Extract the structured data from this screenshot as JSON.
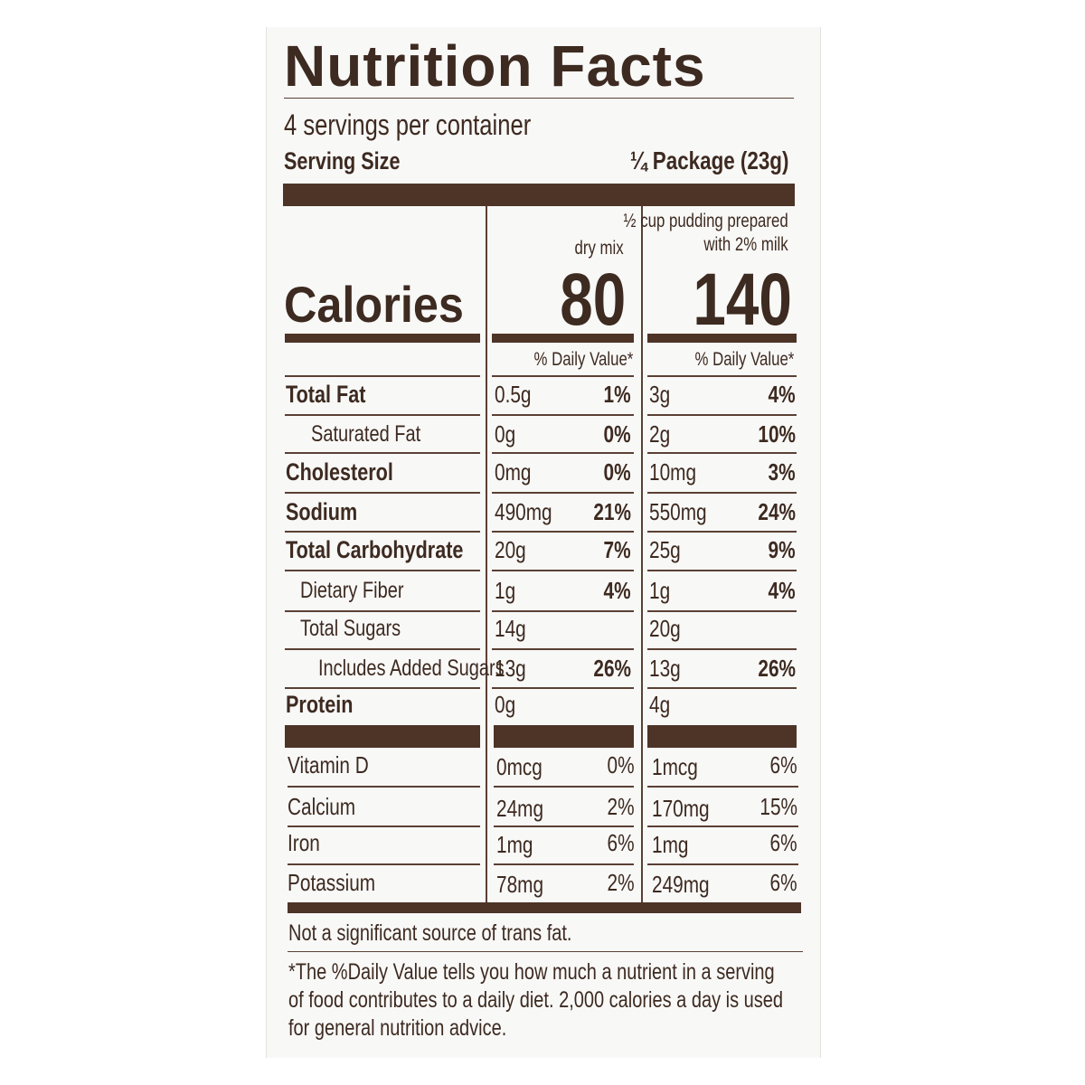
{
  "title": "Nutrition Facts",
  "servings_per_container": "4 servings per container",
  "serving_size_label": "Serving Size",
  "serving_size_value": "¼ Package (23g)",
  "columns": [
    {
      "header": "dry mix",
      "calories": "80",
      "dv_header": "% Daily Value*"
    },
    {
      "header": "½ cup pudding prepared with 2% milk",
      "header_line1": "½ cup pudding prepared",
      "header_line2": "with 2% milk",
      "calories": "140",
      "dv_header": "% Daily Value*"
    }
  ],
  "calories_label": "Calories",
  "nutrients": [
    {
      "name": "Total Fat",
      "bold": true,
      "indent": 0,
      "dry_amount": "0.5g",
      "dry_dv": "1%",
      "prep_amount": "3g",
      "prep_dv": "4%"
    },
    {
      "name": "Saturated Fat",
      "bold": false,
      "indent": 1,
      "dry_amount": "0g",
      "dry_dv": "0%",
      "prep_amount": "2g",
      "prep_dv": "10%"
    },
    {
      "name": "Cholesterol",
      "bold": true,
      "indent": 0,
      "dry_amount": "0mg",
      "dry_dv": "0%",
      "prep_amount": "10mg",
      "prep_dv": "3%"
    },
    {
      "name": "Sodium",
      "bold": true,
      "indent": 0,
      "dry_amount": "490mg",
      "dry_dv": "21%",
      "prep_amount": "550mg",
      "prep_dv": "24%"
    },
    {
      "name": "Total Carbohydrate",
      "bold": true,
      "indent": 0,
      "dry_amount": "20g",
      "dry_dv": "7%",
      "prep_amount": "25g",
      "prep_dv": "9%"
    },
    {
      "name": "Dietary Fiber",
      "bold": false,
      "indent": 1,
      "dry_amount": "1g",
      "dry_dv": "4%",
      "prep_amount": "1g",
      "prep_dv": "4%"
    },
    {
      "name": "Total Sugars",
      "bold": false,
      "indent": 1,
      "dry_amount": "14g",
      "dry_dv": "",
      "prep_amount": "20g",
      "prep_dv": ""
    },
    {
      "name": "Includes Added Sugars",
      "bold": false,
      "indent": 2,
      "dry_amount": "13g",
      "dry_dv": "26%",
      "prep_amount": "13g",
      "prep_dv": "26%"
    },
    {
      "name": "Protein",
      "bold": true,
      "indent": 0,
      "dry_amount": "0g",
      "dry_dv": "",
      "prep_amount": "4g",
      "prep_dv": ""
    }
  ],
  "vitamins": [
    {
      "name": "Vitamin D",
      "dry_amount": "0mcg",
      "dry_dv": "0%",
      "prep_amount": "1mcg",
      "prep_dv": "6%"
    },
    {
      "name": "Calcium",
      "dry_amount": "24mg",
      "dry_dv": "2%",
      "prep_amount": "170mg",
      "prep_dv": "15%"
    },
    {
      "name": "Iron",
      "dry_amount": "1mg",
      "dry_dv": "6%",
      "prep_amount": "1mg",
      "prep_dv": "6%"
    },
    {
      "name": "Potassium",
      "dry_amount": "78mg",
      "dry_dv": "2%",
      "prep_amount": "249mg",
      "prep_dv": "6%"
    }
  ],
  "trans_fat_note": "Not a significant source of trans fat.",
  "footnote_lines": [
    "*The %Daily Value tells you how much a nutrient in a serving",
    "of food contributes to a daily diet. 2,000 calories a day is used",
    "for general nutrition advice."
  ],
  "colors": {
    "ink": "#3d2a20",
    "bar": "#4d3427",
    "panel": "#f8f8f7"
  }
}
